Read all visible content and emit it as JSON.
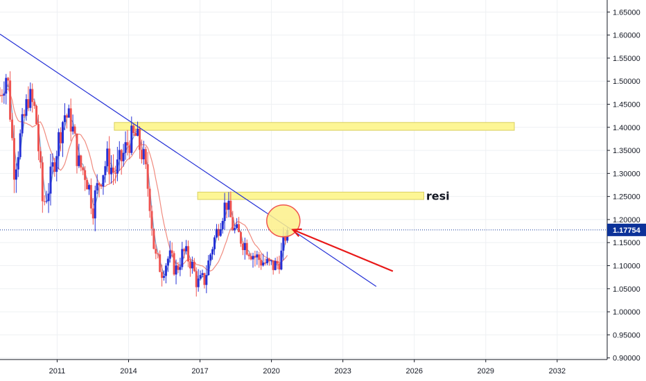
{
  "chart_data": {
    "type": "candlestick",
    "x_axis": {
      "ticks": [
        "2011",
        "2014",
        "2017",
        "2020",
        "2023",
        "2026",
        "2029",
        "2032"
      ],
      "range": [
        2008.6,
        2034.1
      ]
    },
    "y_axis": {
      "ticks": [
        "0.90000",
        "0.95000",
        "1.00000",
        "1.05000",
        "1.10000",
        "1.15000",
        "1.20000",
        "1.25000",
        "1.30000",
        "1.35000",
        "1.40000",
        "1.45000",
        "1.50000",
        "1.55000",
        "1.60000",
        "1.65000"
      ],
      "range": [
        0.898,
        1.658
      ],
      "side": "right"
    },
    "current_price": {
      "label": "1.17754",
      "value": 1.17754
    },
    "candles_anchor": [
      [
        2008.6,
        1.47
      ],
      [
        2008.9,
        1.52
      ],
      [
        2009.2,
        1.31
      ],
      [
        2009.5,
        1.39
      ],
      [
        2009.8,
        1.47
      ],
      [
        2010.1,
        1.43
      ],
      [
        2010.4,
        1.23
      ],
      [
        2010.7,
        1.28
      ],
      [
        2011.0,
        1.36
      ],
      [
        2011.3,
        1.43
      ],
      [
        2011.6,
        1.41
      ],
      [
        2011.9,
        1.32
      ],
      [
        2012.2,
        1.3
      ],
      [
        2012.5,
        1.23
      ],
      [
        2012.8,
        1.29
      ],
      [
        2013.1,
        1.33
      ],
      [
        2013.4,
        1.3
      ],
      [
        2013.7,
        1.33
      ],
      [
        2014.0,
        1.37
      ],
      [
        2014.3,
        1.38
      ],
      [
        2014.6,
        1.34
      ],
      [
        2014.9,
        1.24
      ],
      [
        2015.1,
        1.12
      ],
      [
        2015.4,
        1.09
      ],
      [
        2015.7,
        1.12
      ],
      [
        2016.0,
        1.09
      ],
      [
        2016.3,
        1.13
      ],
      [
        2016.6,
        1.11
      ],
      [
        2016.9,
        1.06
      ],
      [
        2017.2,
        1.07
      ],
      [
        2017.5,
        1.14
      ],
      [
        2017.8,
        1.19
      ],
      [
        2018.1,
        1.24
      ],
      [
        2018.4,
        1.18
      ],
      [
        2018.7,
        1.16
      ],
      [
        2019.0,
        1.14
      ],
      [
        2019.3,
        1.12
      ],
      [
        2019.6,
        1.11
      ],
      [
        2019.9,
        1.1
      ],
      [
        2020.2,
        1.1
      ],
      [
        2020.4,
        1.12
      ],
      [
        2020.6,
        1.17
      ]
    ],
    "moving_averages": [
      {
        "color": "#7e9ec4",
        "period": 3
      },
      {
        "color": "#f08a7e",
        "period": 12
      }
    ],
    "annotations": {
      "trendline": {
        "color": "#2430d6",
        "points": [
          [
            2008.6,
            1.602
          ],
          [
            2024.4,
            1.055
          ]
        ]
      },
      "zones": [
        {
          "x0": 2013.4,
          "x1": 2030.2,
          "y0": 1.3935,
          "y1": 1.4105,
          "fill": "#fdf695",
          "stroke": "#d9d062"
        },
        {
          "x0": 2016.9,
          "x1": 2026.4,
          "y0": 1.2435,
          "y1": 1.2595,
          "fill": "#fdf695",
          "stroke": "#d9d062"
        }
      ],
      "resistance_label": {
        "text": "resi",
        "x": 2026.5,
        "y": 1.252
      },
      "circle": {
        "cx": 2020.5,
        "cy": 1.197,
        "fill": "#fdf08a",
        "stroke": "#f0544f"
      },
      "arrow": {
        "from": [
          2025.1,
          1.088
        ],
        "to": [
          2020.9,
          1.178
        ],
        "color": "#e81818"
      }
    },
    "colors": {
      "up": "#2430d6",
      "down": "#ef5350",
      "grid": "#eef0f3",
      "axis": "#131722",
      "price_badge": "#0c3299"
    },
    "grid": true
  }
}
